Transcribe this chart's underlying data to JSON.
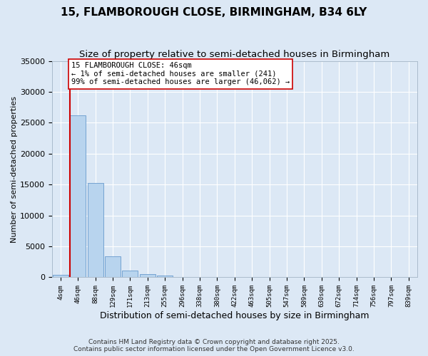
{
  "title1": "15, FLAMBOROUGH CLOSE, BIRMINGHAM, B34 6LY",
  "title2": "Size of property relative to semi-detached houses in Birmingham",
  "xlabel": "Distribution of semi-detached houses by size in Birmingham",
  "ylabel": "Number of semi-detached properties",
  "categories": [
    "4sqm",
    "46sqm",
    "88sqm",
    "129sqm",
    "171sqm",
    "213sqm",
    "255sqm",
    "296sqm",
    "338sqm",
    "380sqm",
    "422sqm",
    "463sqm",
    "505sqm",
    "547sqm",
    "589sqm",
    "630sqm",
    "672sqm",
    "714sqm",
    "756sqm",
    "797sqm",
    "839sqm"
  ],
  "bar_heights": [
    400,
    26200,
    15200,
    3400,
    1100,
    550,
    280,
    0,
    0,
    0,
    0,
    0,
    0,
    0,
    0,
    0,
    0,
    0,
    0,
    0,
    0
  ],
  "bar_color": "#b8d4ee",
  "bar_edge_color": "#6699cc",
  "vline_color": "#cc0000",
  "annotation_text": "15 FLAMBOROUGH CLOSE: 46sqm\n← 1% of semi-detached houses are smaller (241)\n99% of semi-detached houses are larger (46,062) →",
  "ylim": [
    0,
    35000
  ],
  "yticks": [
    0,
    5000,
    10000,
    15000,
    20000,
    25000,
    30000,
    35000
  ],
  "footer": "Contains HM Land Registry data © Crown copyright and database right 2025.\nContains public sector information licensed under the Open Government Licence v3.0.",
  "bg_color": "#dce8f5",
  "grid_color": "#ffffff",
  "title1_fontsize": 11,
  "title2_fontsize": 9.5,
  "annotation_fontsize": 7.5,
  "footer_fontsize": 6.5,
  "ylabel_fontsize": 8,
  "xlabel_fontsize": 9
}
